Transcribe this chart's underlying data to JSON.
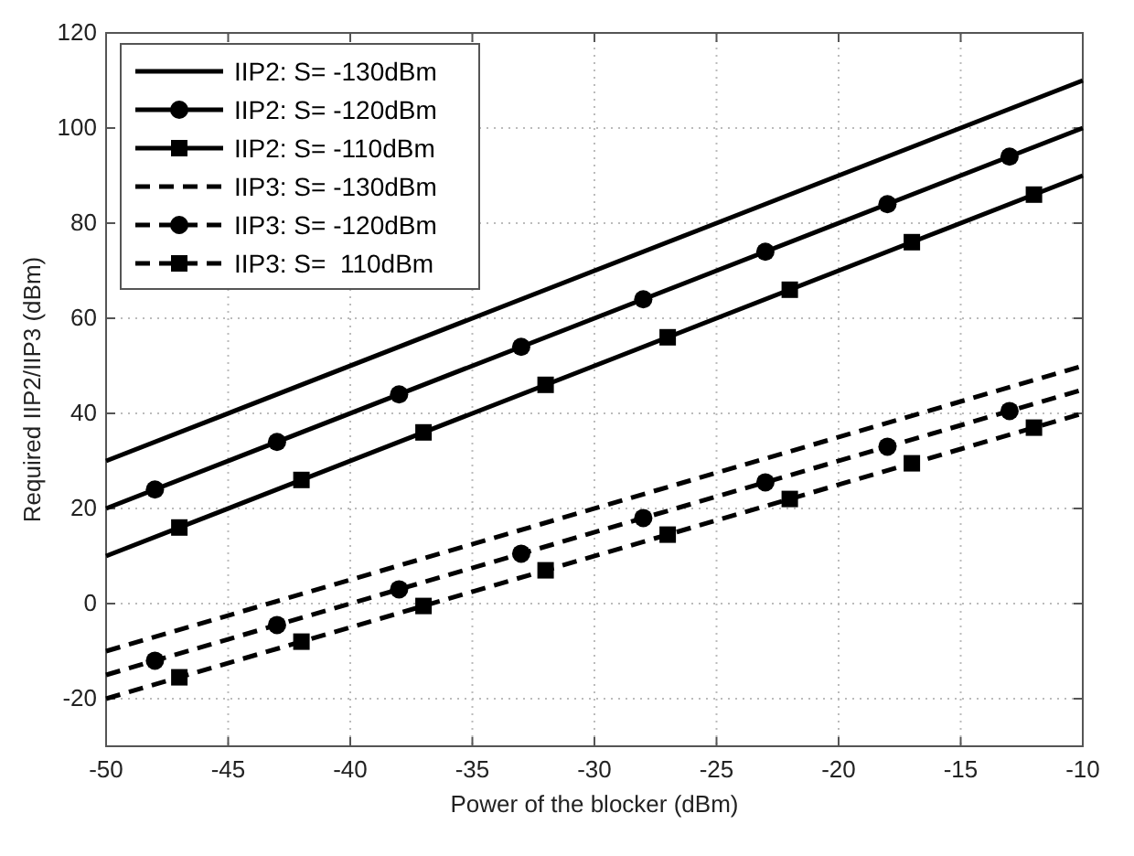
{
  "chart_data": {
    "type": "line",
    "xlabel": "Power of the blocker (dBm)",
    "ylabel": "Required IIP2/IIP3 (dBm)",
    "xlim": [
      -50,
      -10
    ],
    "xticks": [
      -50,
      -45,
      -40,
      -35,
      -30,
      -25,
      -20,
      -15,
      -10
    ],
    "ylim": [
      -30,
      120
    ],
    "yticks": [
      -20,
      0,
      20,
      40,
      60,
      80,
      100,
      120
    ],
    "grid": true,
    "legend": "top left",
    "series": [
      {
        "name": "IIP2: S= -130dBm",
        "color": "#000000",
        "line_style": "solid",
        "x": [
          -50,
          -10
        ],
        "values": [
          30,
          110
        ]
      },
      {
        "name": "IIP2: S= -120dBm",
        "color": "#000000",
        "line_style": "solid",
        "x": [
          -50,
          -10
        ],
        "values": [
          20,
          100
        ]
      },
      {
        "type": "scatter",
        "color": "#000000",
        "marker": "circle",
        "x": [
          -48,
          -43,
          -38,
          -33,
          -28,
          -23,
          -18,
          -13
        ],
        "values": [
          24,
          34,
          44,
          54,
          64,
          74,
          84,
          94
        ]
      },
      {
        "name": "IIP2: S= -110dBm",
        "color": "#000000",
        "line_style": "solid",
        "x": [
          -50,
          -10
        ],
        "values": [
          10,
          90
        ]
      },
      {
        "type": "scatter",
        "color": "#000000",
        "marker": "square",
        "x": [
          -47,
          -42,
          -37,
          -32,
          -27,
          -22,
          -17,
          -12
        ],
        "values": [
          16,
          26,
          36,
          46,
          56,
          66,
          76,
          86
        ]
      },
      {
        "name": "IIP3: S= -130dBm",
        "color": "#000000",
        "line_style": "dashed",
        "x": [
          -50,
          -10
        ],
        "values": [
          -10,
          50
        ]
      },
      {
        "name": "IIP3: S= -120dBm",
        "color": "#000000",
        "line_style": "dashed",
        "x": [
          -50,
          -10
        ],
        "values": [
          -15,
          45
        ]
      },
      {
        "type": "scatter",
        "color": "#000000",
        "marker": "circle",
        "x": [
          -48,
          -43,
          -38,
          -33,
          -28,
          -23,
          -18,
          -13
        ],
        "values": [
          -12,
          -4.5,
          3,
          10.5,
          18,
          25.5,
          33,
          40.5
        ]
      },
      {
        "name": "IIP3: S=  110dBm",
        "color": "#000000",
        "line_style": "dashed",
        "x": [
          -50,
          -10
        ],
        "values": [
          -20,
          40
        ]
      },
      {
        "type": "scatter",
        "color": "#000000",
        "marker": "square",
        "x": [
          -47,
          -42,
          -37,
          -32,
          -27,
          -22,
          -17,
          -12
        ],
        "values": [
          -15.5,
          -8,
          -0.5,
          7,
          14.5,
          22,
          29.5,
          37
        ]
      }
    ]
  }
}
